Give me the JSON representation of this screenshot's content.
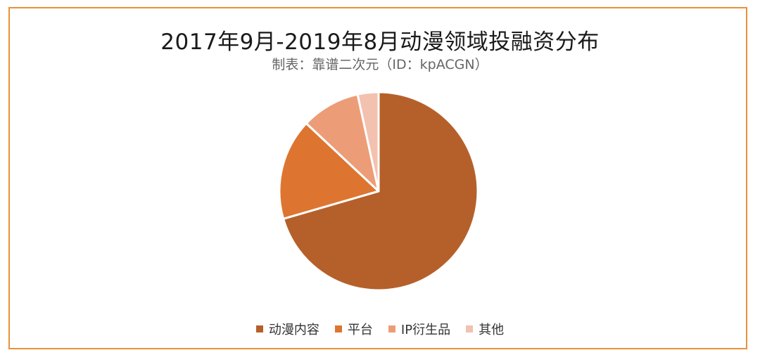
{
  "chart_data": {
    "type": "pie",
    "title": "2017年9月-2019年8月动漫领域投融资分布",
    "subtitle": "制表：靠谱二次元（ID：kpACGN）",
    "categories": [
      "动漫内容",
      "平台",
      "IP衍生品",
      "其他"
    ],
    "values": [
      70.5,
      16.5,
      9.6,
      3.4
    ],
    "colors": [
      "#b5602a",
      "#dd7530",
      "#ec9d77",
      "#f3c1b0"
    ],
    "legend_position": "bottom"
  },
  "border_color": "#e8913a"
}
